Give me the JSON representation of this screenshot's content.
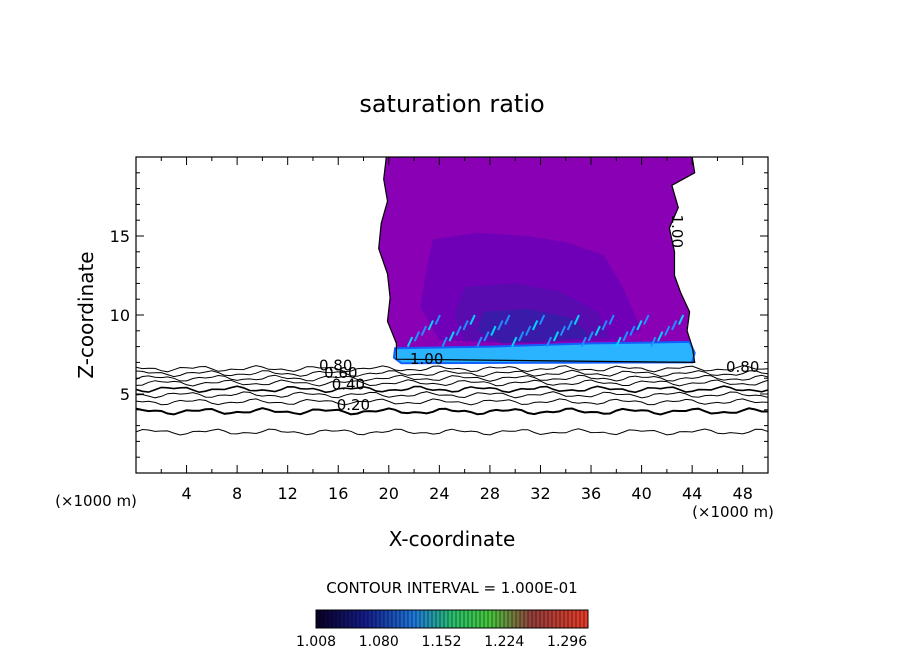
{
  "chart_data": {
    "type": "heatmap",
    "title": "saturation ratio",
    "xlabel": "X-coordinate",
    "ylabel": "Z-coordinate",
    "x_unit_left": "(×1000 m)",
    "x_unit_right": "(×1000 m)",
    "xlim": [
      0,
      50
    ],
    "ylim": [
      0,
      20
    ],
    "x_ticks": [
      4,
      8,
      12,
      16,
      20,
      24,
      28,
      32,
      36,
      40,
      44,
      48
    ],
    "y_ticks": [
      5,
      10,
      15
    ],
    "contour_interval_text": "CONTOUR INTERVAL = 1.000E-01",
    "contour_labels": [
      {
        "text": "0.20",
        "x": 17.2,
        "y": 4.0
      },
      {
        "text": "0.40",
        "x": 16.8,
        "y": 5.3
      },
      {
        "text": "0.60",
        "x": 16.2,
        "y": 6.0
      },
      {
        "text": "0.80",
        "x": 15.8,
        "y": 6.5
      },
      {
        "text": "1.00",
        "x": 23.0,
        "y": 6.9
      },
      {
        "text": "1.00",
        "x": 42.4,
        "y": 15.3
      },
      {
        "text": "0.80",
        "x": 48.0,
        "y": 6.4
      }
    ],
    "colorbar": {
      "min": 1.008,
      "max": 1.32,
      "tick_labels": [
        "1.008",
        "1.080",
        "1.152",
        "1.224",
        "1.296"
      ],
      "tick_values": [
        1.008,
        1.08,
        1.152,
        1.224,
        1.296
      ]
    },
    "colors": {
      "cloud": "#8a00b4",
      "inner_1": "#6f00b8",
      "inner_2": "#5a0bb0",
      "core": "#3a1aa8",
      "cloud_base": "#2ab4ff",
      "cloud_base_edge": "#1060ff"
    }
  }
}
